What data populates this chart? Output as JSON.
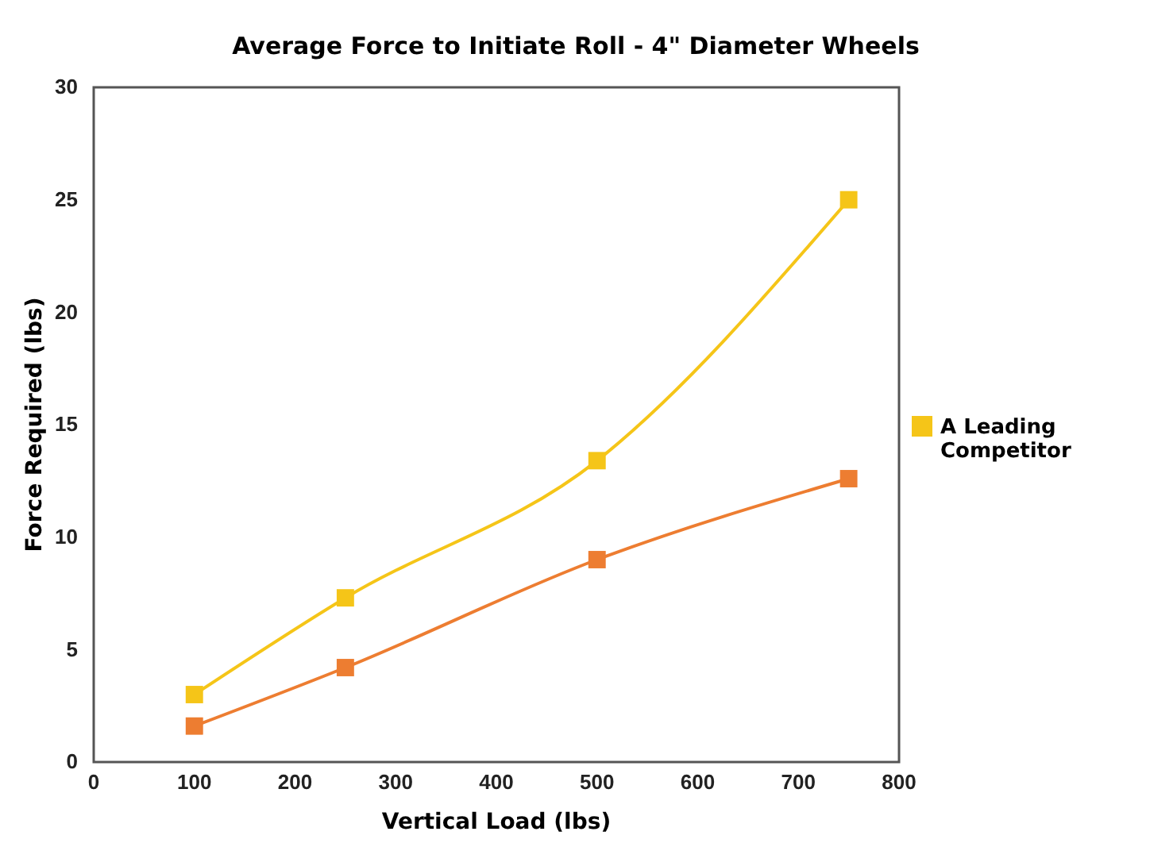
{
  "chart_data": {
    "type": "line",
    "title": "Average Force to Initiate Roll - 4\" Diameter Wheels",
    "xlabel": "Vertical Load (lbs)",
    "ylabel": "Force Required (lbs)",
    "x": [
      100,
      250,
      500,
      750
    ],
    "series": [
      {
        "color": "#ed7d31",
        "values": [
          1.6,
          4.2,
          9.0,
          12.6
        ]
      },
      {
        "name": "A Leading Competitor",
        "color": "#f5c518",
        "values": [
          3.0,
          7.3,
          13.4,
          25.0
        ]
      }
    ],
    "xlim": [
      0,
      800
    ],
    "xticks": [
      0,
      100,
      200,
      300,
      400,
      500,
      600,
      700,
      800
    ],
    "ylim": [
      0,
      30
    ],
    "yticks": [
      0,
      5,
      10,
      15,
      20,
      25,
      30
    ],
    "grid": false,
    "legend": "right",
    "marker": "square",
    "line_style": "solid"
  }
}
